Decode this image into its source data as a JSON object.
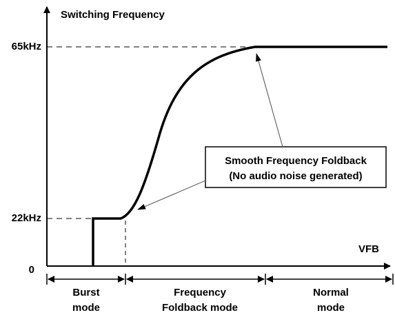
{
  "y_axis_label": "Switching Frequency",
  "x_axis_label": "VFB",
  "y_levels": [
    "65kHz",
    "22kHz",
    "0"
  ],
  "annotation": {
    "line1": "Smooth Frequency Foldback",
    "line2": "(No audio noise generated)"
  },
  "modes": [
    {
      "line1": "Burst",
      "line2": "mode"
    },
    {
      "line1": "Frequency",
      "line2": "Foldback mode"
    },
    {
      "line1": "Normal",
      "line2": "mode"
    }
  ]
}
